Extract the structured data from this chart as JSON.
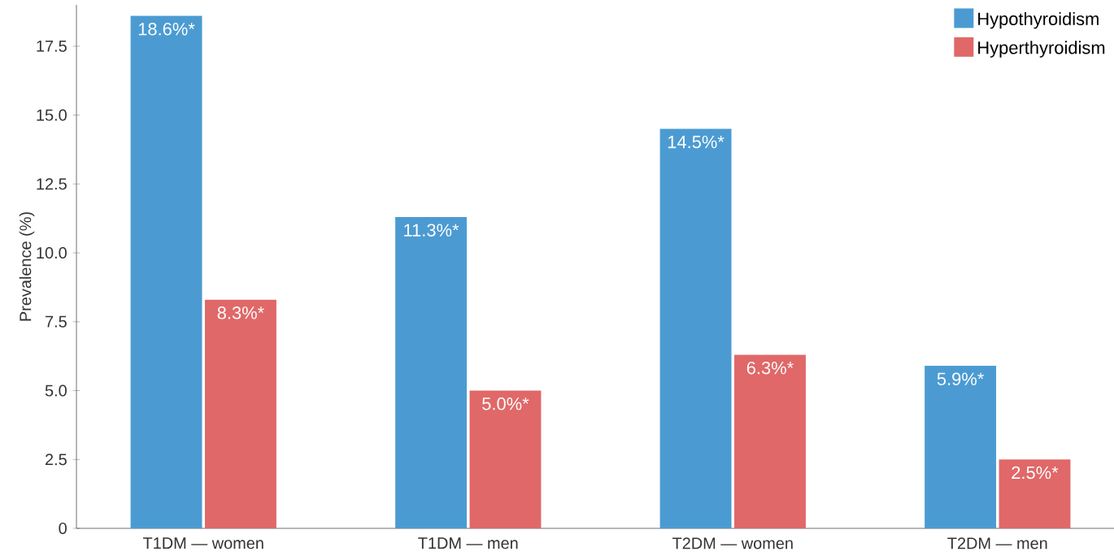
{
  "chart_data": {
    "type": "bar",
    "ylabel": "Prevalence (%)",
    "categories": [
      "T1DM — women",
      "T1DM — men",
      "T2DM — women",
      "T2DM — men"
    ],
    "series": [
      {
        "name": "Hypothyroidism",
        "color": "#4b9bd2",
        "values": [
          18.6,
          11.3,
          14.5,
          5.9
        ],
        "value_labels": [
          "18.6%*",
          "11.3%*",
          "14.5%*",
          "5.9%*"
        ]
      },
      {
        "name": "Hyperthyroidism",
        "color": "#e06868",
        "values": [
          8.3,
          5.0,
          6.3,
          2.5
        ],
        "value_labels": [
          "8.3%*",
          "5.0%*",
          "6.3%*",
          "2.5%*"
        ]
      }
    ],
    "ylim": [
      0,
      19
    ],
    "yticks": [
      0,
      2.5,
      {
        "value": 5,
        "label": "5.0"
      },
      7.5,
      {
        "value": 10,
        "label": "10.0"
      },
      12.5,
      {
        "value": 15,
        "label": "15.0"
      },
      17.5
    ],
    "legend": "top right",
    "grid": false
  }
}
